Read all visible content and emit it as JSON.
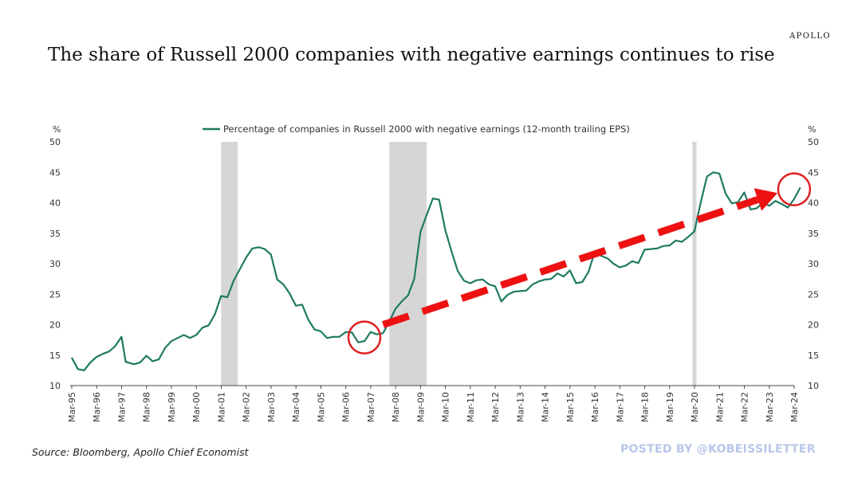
{
  "brand": "APOLLO",
  "title": "The share of Russell 2000 companies with negative earnings continues to rise",
  "source": "Source: Bloomberg, Apollo Chief Economist",
  "watermark": "POSTED BY @KOBEISSILETTER",
  "chart_data": {
    "type": "line",
    "unit_left": "%",
    "unit_right": "%",
    "ylim": [
      10,
      50
    ],
    "yticks": [
      10,
      15,
      20,
      25,
      30,
      35,
      40,
      45,
      50
    ],
    "xticks": [
      "Mar-95",
      "Mar-96",
      "Mar-97",
      "Mar-98",
      "Mar-99",
      "Mar-00",
      "Mar-01",
      "Mar-02",
      "Mar-03",
      "Mar-04",
      "Mar-05",
      "Mar-06",
      "Mar-07",
      "Mar-08",
      "Mar-09",
      "Mar-10",
      "Mar-11",
      "Mar-12",
      "Mar-13",
      "Mar-14",
      "Mar-15",
      "Mar-16",
      "Mar-17",
      "Mar-18",
      "Mar-19",
      "Mar-20",
      "Mar-21",
      "Mar-22",
      "Mar-23",
      "Mar-24"
    ],
    "grid": false,
    "legend_position": "top-center",
    "series": [
      {
        "name": "Percentage of companies in Russell 2000 with negative earnings (12-month trailing EPS)",
        "color": "#1f7a63",
        "points": [
          [
            "1995-03",
            14.6
          ],
          [
            "1995-06",
            12.7
          ],
          [
            "1995-09",
            12.5
          ],
          [
            "1995-12",
            13.8
          ],
          [
            "1996-03",
            14.7
          ],
          [
            "1996-06",
            15.2
          ],
          [
            "1996-09",
            15.6
          ],
          [
            "1996-12",
            16.5
          ],
          [
            "1997-03",
            18.0
          ],
          [
            "1997-05",
            13.9
          ],
          [
            "1997-09",
            13.5
          ],
          [
            "1997-12",
            13.8
          ],
          [
            "1998-03",
            14.9
          ],
          [
            "1998-06",
            14.0
          ],
          [
            "1998-09",
            14.3
          ],
          [
            "1998-12",
            16.2
          ],
          [
            "1999-03",
            17.3
          ],
          [
            "1999-06",
            17.8
          ],
          [
            "1999-09",
            18.3
          ],
          [
            "1999-12",
            17.8
          ],
          [
            "2000-03",
            18.3
          ],
          [
            "2000-06",
            19.5
          ],
          [
            "2000-09",
            19.9
          ],
          [
            "2000-12",
            21.7
          ],
          [
            "2001-03",
            24.7
          ],
          [
            "2001-06",
            24.5
          ],
          [
            "2001-09",
            27.2
          ],
          [
            "2001-12",
            29.1
          ],
          [
            "2002-03",
            31.0
          ],
          [
            "2002-06",
            32.5
          ],
          [
            "2002-09",
            32.7
          ],
          [
            "2002-12",
            32.4
          ],
          [
            "2003-03",
            31.5
          ],
          [
            "2003-06",
            27.4
          ],
          [
            "2003-09",
            26.6
          ],
          [
            "2003-12",
            25.1
          ],
          [
            "2004-03",
            23.1
          ],
          [
            "2004-06",
            23.3
          ],
          [
            "2004-09",
            20.8
          ],
          [
            "2004-12",
            19.2
          ],
          [
            "2005-03",
            18.9
          ],
          [
            "2005-06",
            17.8
          ],
          [
            "2005-09",
            18.0
          ],
          [
            "2005-12",
            18.0
          ],
          [
            "2006-03",
            18.8
          ],
          [
            "2006-06",
            18.7
          ],
          [
            "2006-09",
            17.1
          ],
          [
            "2006-12",
            17.3
          ],
          [
            "2007-03",
            18.8
          ],
          [
            "2007-06",
            18.4
          ],
          [
            "2007-09",
            18.6
          ],
          [
            "2007-12",
            20.5
          ],
          [
            "2008-03",
            22.6
          ],
          [
            "2008-06",
            23.8
          ],
          [
            "2008-09",
            24.8
          ],
          [
            "2008-12",
            27.5
          ],
          [
            "2009-03",
            35.2
          ],
          [
            "2009-06",
            38.0
          ],
          [
            "2009-09",
            40.7
          ],
          [
            "2009-12",
            40.5
          ],
          [
            "2010-03",
            35.5
          ],
          [
            "2010-06",
            32.0
          ],
          [
            "2010-09",
            28.8
          ],
          [
            "2010-12",
            27.2
          ],
          [
            "2011-03",
            26.8
          ],
          [
            "2011-06",
            27.3
          ],
          [
            "2011-09",
            27.4
          ],
          [
            "2011-12",
            26.6
          ],
          [
            "2012-03",
            26.3
          ],
          [
            "2012-06",
            23.8
          ],
          [
            "2012-09",
            24.9
          ],
          [
            "2012-12",
            25.4
          ],
          [
            "2013-03",
            25.5
          ],
          [
            "2013-06",
            25.6
          ],
          [
            "2013-09",
            26.6
          ],
          [
            "2013-12",
            27.1
          ],
          [
            "2014-03",
            27.4
          ],
          [
            "2014-06",
            27.5
          ],
          [
            "2014-09",
            28.4
          ],
          [
            "2014-12",
            27.9
          ],
          [
            "2015-03",
            28.9
          ],
          [
            "2015-06",
            26.8
          ],
          [
            "2015-09",
            27.0
          ],
          [
            "2015-12",
            28.7
          ],
          [
            "2016-03",
            32.0
          ],
          [
            "2016-06",
            31.3
          ],
          [
            "2016-09",
            30.9
          ],
          [
            "2016-12",
            30.0
          ],
          [
            "2017-03",
            29.4
          ],
          [
            "2017-06",
            29.7
          ],
          [
            "2017-09",
            30.4
          ],
          [
            "2017-12",
            30.1
          ],
          [
            "2018-03",
            32.3
          ],
          [
            "2018-06",
            32.4
          ],
          [
            "2018-09",
            32.5
          ],
          [
            "2018-12",
            32.9
          ],
          [
            "2019-03",
            33.0
          ],
          [
            "2019-06",
            33.8
          ],
          [
            "2019-09",
            33.6
          ],
          [
            "2019-12",
            34.4
          ],
          [
            "2020-03",
            35.3
          ],
          [
            "2020-06",
            40.0
          ],
          [
            "2020-09",
            44.3
          ],
          [
            "2020-12",
            45.0
          ],
          [
            "2021-03",
            44.8
          ],
          [
            "2021-06",
            41.5
          ],
          [
            "2021-09",
            39.9
          ],
          [
            "2021-12",
            40.1
          ],
          [
            "2022-03",
            41.7
          ],
          [
            "2022-06",
            38.9
          ],
          [
            "2022-09",
            39.1
          ],
          [
            "2022-12",
            40.0
          ],
          [
            "2023-03",
            39.5
          ],
          [
            "2023-06",
            40.3
          ],
          [
            "2023-09",
            39.8
          ],
          [
            "2023-12",
            39.2
          ],
          [
            "2024-03",
            40.6
          ],
          [
            "2024-06",
            42.5
          ]
        ]
      }
    ],
    "recession_bands": [
      [
        "2001-03",
        "2001-11"
      ],
      [
        "2007-12",
        "2009-06"
      ],
      [
        "2020-02",
        "2020-04"
      ]
    ],
    "trend_arrow": {
      "color": "#ee1111",
      "from": [
        "2007-09",
        20.0
      ],
      "to": [
        "2023-07",
        41.6
      ]
    },
    "highlight_circles": [
      {
        "at": [
          "2006-12",
          17.9
        ],
        "color": "#dd2222"
      },
      {
        "at": [
          "2024-03",
          42.2
        ],
        "color": "#dd2222"
      }
    ]
  }
}
